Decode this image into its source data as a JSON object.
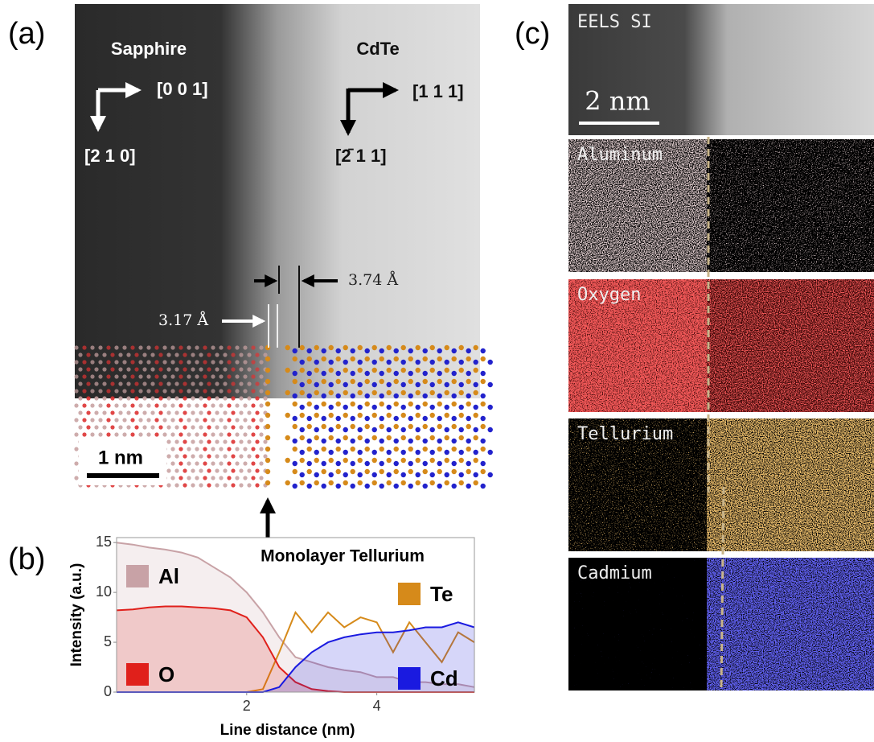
{
  "panel_labels": [
    "(a)",
    "(b)",
    "(c)"
  ],
  "panel_a": {
    "left_material": "Sapphire",
    "right_material": "CdTe",
    "left_directions": [
      "[0 0 1]",
      "[2 1 0]"
    ],
    "right_directions": [
      "[1 1 1]",
      "[2̄ 1 1]"
    ],
    "spacing_labels": [
      "3.74 Å",
      "3.17 Å"
    ],
    "scale_bar": "1 nm"
  },
  "panel_c": {
    "title": "EELS SI",
    "scale_bar": "2 nm",
    "maps": [
      "Aluminum",
      "Oxygen",
      "Tellurium",
      "Cadmium"
    ]
  },
  "chart_data": {
    "type": "line",
    "annotation": "Monolayer Tellurium",
    "x_label": "Line distance (nm)",
    "y_label": "Intensity (a.u.)",
    "x": [
      0,
      0.25,
      0.5,
      0.75,
      1,
      1.25,
      1.5,
      1.75,
      2,
      2.25,
      2.5,
      2.75,
      3,
      3.25,
      3.5,
      3.75,
      4,
      4.25,
      4.5,
      4.75,
      5,
      5.25,
      5.5
    ],
    "series": [
      {
        "name": "Al",
        "color": "#c8a2a6",
        "values": [
          15,
          14.8,
          14.5,
          14.3,
          14,
          13.5,
          12.5,
          11.5,
          10,
          8,
          5.5,
          3.5,
          3,
          2.5,
          2.2,
          2,
          1.5,
          1.5,
          1,
          1,
          0.8,
          0.8,
          0.5
        ]
      },
      {
        "name": "Te",
        "color": "#d68a1a",
        "values": [
          0,
          0,
          0,
          0,
          0,
          0,
          0,
          0,
          0,
          0.3,
          4,
          8,
          6,
          8,
          6.5,
          7.5,
          7,
          4,
          7,
          5,
          3,
          6,
          5
        ]
      },
      {
        "name": "O",
        "color": "#e0201b",
        "values": [
          8.2,
          8.3,
          8.5,
          8.6,
          8.6,
          8.5,
          8.4,
          8.2,
          7.5,
          5.5,
          2.5,
          1,
          0.3,
          0.1,
          0,
          0,
          0,
          0,
          0,
          0,
          0,
          0,
          0
        ]
      },
      {
        "name": "Cd",
        "color": "#1a1ae0",
        "values": [
          0,
          0,
          0,
          0,
          0,
          0,
          0,
          0,
          0,
          0,
          0.5,
          2.5,
          4,
          5,
          5.5,
          5.8,
          6,
          6,
          6.2,
          6.5,
          6.5,
          7,
          6.5
        ]
      }
    ],
    "xlim": [
      0,
      5.5
    ],
    "ylim": [
      0,
      15.5
    ],
    "xticks": [
      2,
      4
    ],
    "yticks": [
      0,
      5,
      10,
      15
    ],
    "grid": false
  }
}
